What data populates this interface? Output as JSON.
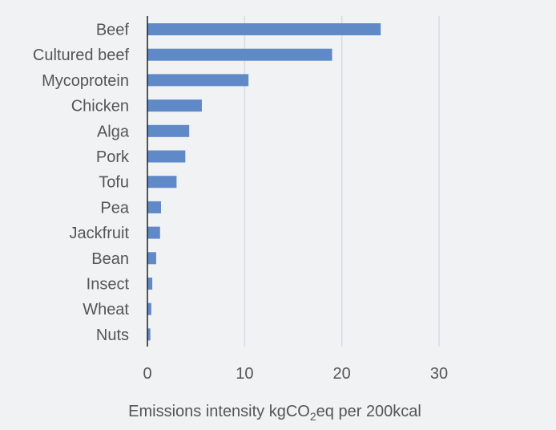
{
  "chart_data": {
    "type": "bar",
    "orientation": "horizontal",
    "categories": [
      "Beef",
      "Cultured beef",
      "Mycoprotein",
      "Chicken",
      "Alga",
      "Pork",
      "Tofu",
      "Pea",
      "Jackfruit",
      "Bean",
      "Insect",
      "Wheat",
      "Nuts"
    ],
    "values": [
      24,
      19,
      10.4,
      5.6,
      4.3,
      3.9,
      3.0,
      1.4,
      1.3,
      0.9,
      0.5,
      0.4,
      0.3
    ],
    "xlim": [
      0,
      30
    ],
    "xticks": [
      0,
      10,
      20,
      30
    ],
    "xlabel": {
      "prefix": "Emissions intensity kgCO",
      "subscript": "2",
      "suffix": "eq per 200kcal"
    },
    "grid": "vertical",
    "bar_color": "#6089c7",
    "gridline_color": "#d9dbdf",
    "axis_color": "#222222",
    "background": "#f1f2f4"
  }
}
